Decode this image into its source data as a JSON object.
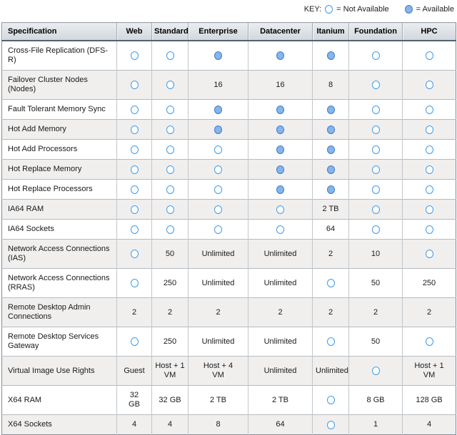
{
  "key": {
    "label": "KEY:",
    "not_available": {
      "icon": "circle-outline",
      "label": "= Not Available"
    },
    "available": {
      "icon": "circle-filled-dotted",
      "label": "= Available"
    }
  },
  "colors": {
    "circle_outline_blue": "#3e9ceb",
    "available_fill": "#7fb0e8",
    "available_border": "#3f7dce",
    "header_bottom_border": "#55626f",
    "row_stripe": "#f0efee"
  },
  "table": {
    "columns": [
      "Specification",
      "Web",
      "Standard",
      "Enterprise",
      "Datacenter",
      "Itanium",
      "Foundation",
      "HPC"
    ],
    "cell_tokens": {
      "not_available": "@na",
      "available": "@avail"
    },
    "rows": [
      {
        "spec": "Cross-File Replication (DFS-R)",
        "cells": [
          "@na",
          "@na",
          "@avail",
          "@avail",
          "@avail",
          "@na",
          "@na"
        ]
      },
      {
        "spec": "Failover Cluster Nodes (Nodes)",
        "cells": [
          "@na",
          "@na",
          "16",
          "16",
          "8",
          "@na",
          "@na"
        ]
      },
      {
        "spec": "Fault Tolerant Memory Sync",
        "cells": [
          "@na",
          "@na",
          "@avail",
          "@avail",
          "@avail",
          "@na",
          "@na"
        ]
      },
      {
        "spec": "Hot Add Memory",
        "cells": [
          "@na",
          "@na",
          "@avail",
          "@avail",
          "@avail",
          "@na",
          "@na"
        ]
      },
      {
        "spec": "Hot Add Processors",
        "cells": [
          "@na",
          "@na",
          "@na",
          "@avail",
          "@avail",
          "@na",
          "@na"
        ]
      },
      {
        "spec": "Hot Replace Memory",
        "cells": [
          "@na",
          "@na",
          "@na",
          "@avail",
          "@avail",
          "@na",
          "@na"
        ]
      },
      {
        "spec": "Hot Replace Processors",
        "cells": [
          "@na",
          "@na",
          "@na",
          "@avail",
          "@avail",
          "@na",
          "@na"
        ]
      },
      {
        "spec": "IA64 RAM",
        "cells": [
          "@na",
          "@na",
          "@na",
          "@na",
          "2 TB",
          "@na",
          "@na"
        ]
      },
      {
        "spec": "IA64 Sockets",
        "cells": [
          "@na",
          "@na",
          "@na",
          "@na",
          "64",
          "@na",
          "@na"
        ]
      },
      {
        "spec": "Network Access Connections (IAS)",
        "cells": [
          "@na",
          "50",
          "Unlimited",
          "Unlimited",
          "2",
          "10",
          "@na"
        ]
      },
      {
        "spec": "Network Access Connections (RRAS)",
        "cells": [
          "@na",
          "250",
          "Unlimited",
          "Unlimited",
          "@na",
          "50",
          "250"
        ]
      },
      {
        "spec": "Remote Desktop Admin Connections",
        "cells": [
          "2",
          "2",
          "2",
          "2",
          "2",
          "2",
          "2"
        ]
      },
      {
        "spec": "Remote Desktop Services Gateway",
        "cells": [
          "@na",
          "250",
          "Unlimited",
          "Unlimited",
          "@na",
          "50",
          "@na"
        ]
      },
      {
        "spec": "Virtual Image Use Rights",
        "cells": [
          "Guest",
          "Host + 1\nVM",
          "Host + 4\nVM",
          "Unlimited",
          "Unlimited",
          "@na",
          "Host + 1\nVM"
        ]
      },
      {
        "spec": "X64 RAM",
        "cells": [
          "32\nGB",
          "32 GB",
          "2 TB",
          "2 TB",
          "@na",
          "8 GB",
          "128 GB"
        ]
      },
      {
        "spec": "X64 Sockets",
        "cells": [
          "4",
          "4",
          "8",
          "64",
          "@na",
          "1",
          "4"
        ]
      }
    ]
  }
}
